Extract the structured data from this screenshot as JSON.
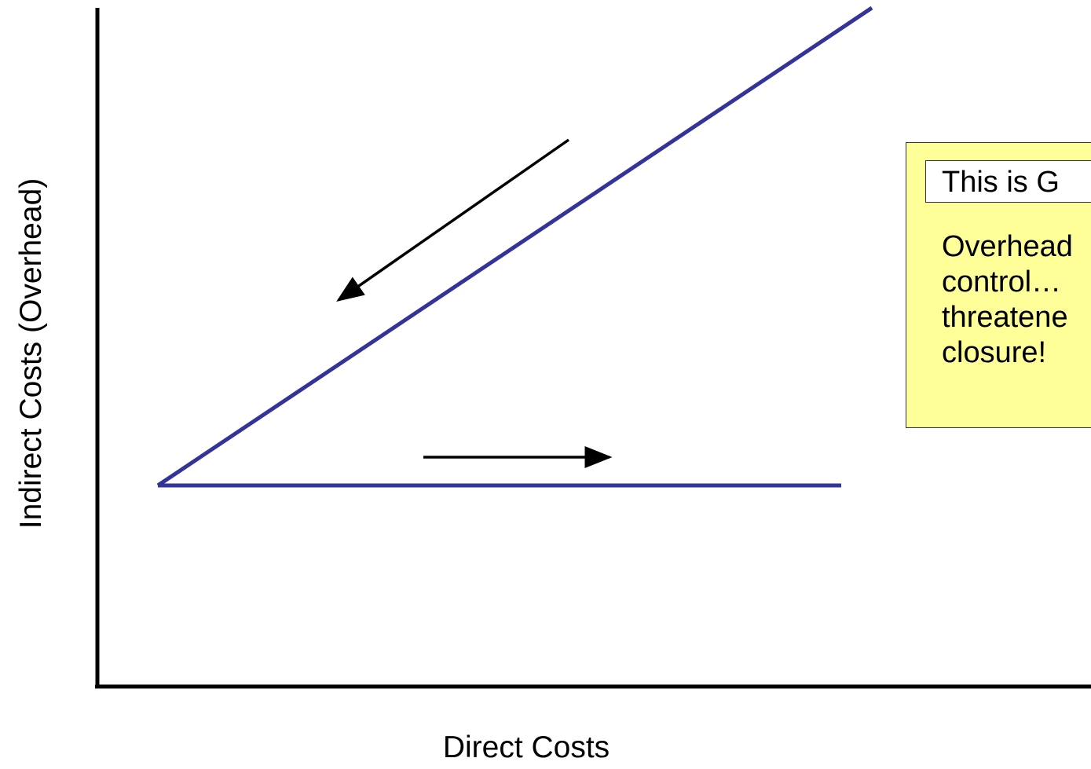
{
  "axes": {
    "x_label": "Direct Costs",
    "y_label": "Indirect Costs (Overhead)"
  },
  "lines": [
    {
      "name": "rising-cost-line",
      "color": "#333399"
    },
    {
      "name": "flat-cost-line",
      "color": "#333399"
    }
  ],
  "arrows": [
    {
      "name": "down-left-arrow",
      "direction": "down-left"
    },
    {
      "name": "right-arrow",
      "direction": "right"
    }
  ],
  "callout": {
    "title": "This is G",
    "body_lines": [
      "Overhead",
      "control…",
      "threatene",
      "closure!"
    ],
    "background": "#ffff99"
  }
}
